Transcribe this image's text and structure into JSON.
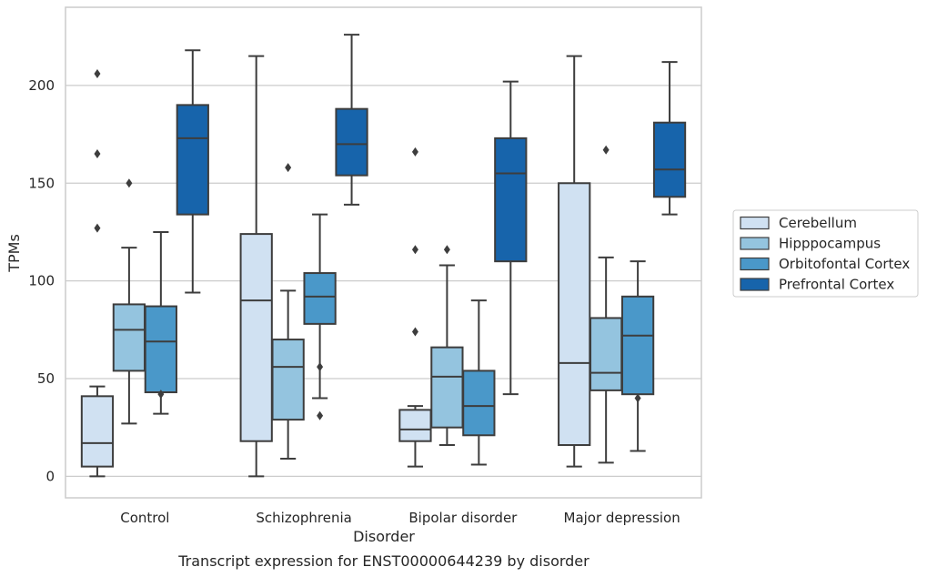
{
  "chart_data": {
    "type": "box",
    "caption": "Transcript expression for ENST00000644239 by disorder",
    "xlabel": "Disorder",
    "ylabel": "TPMs",
    "ylim": [
      -11,
      240
    ],
    "yticks": [
      0,
      50,
      100,
      150,
      200
    ],
    "grid": "horizontal",
    "legend_position": "right",
    "categories": [
      "Control",
      "Schizophrenia",
      "Bipolar disorder",
      "Major depression"
    ],
    "series": [
      {
        "name": "Cerebellum",
        "color": "#d0e1f2",
        "boxes": [
          {
            "whisker_low": 0,
            "q1": 5,
            "median": 17,
            "q3": 41,
            "whisker_high": 46,
            "outliers": [
              206,
              165,
              127
            ]
          },
          {
            "whisker_low": 0,
            "q1": 18,
            "median": 90,
            "q3": 124,
            "whisker_high": 215,
            "outliers": []
          },
          {
            "whisker_low": 5,
            "q1": 18,
            "median": 24,
            "q3": 34,
            "whisker_high": 36,
            "outliers": [
              166,
              116,
              74
            ]
          },
          {
            "whisker_low": 5,
            "q1": 16,
            "median": 58,
            "q3": 150,
            "whisker_high": 215,
            "outliers": []
          }
        ]
      },
      {
        "name": "Hipppocampus",
        "color": "#94c4df",
        "boxes": [
          {
            "whisker_low": 27,
            "q1": 54,
            "median": 75,
            "q3": 88,
            "whisker_high": 117,
            "outliers": [
              150
            ]
          },
          {
            "whisker_low": 9,
            "q1": 29,
            "median": 56,
            "q3": 70,
            "whisker_high": 95,
            "outliers": [
              158
            ]
          },
          {
            "whisker_low": 16,
            "q1": 25,
            "median": 51,
            "q3": 66,
            "whisker_high": 108,
            "outliers": [
              116
            ]
          },
          {
            "whisker_low": 7,
            "q1": 44,
            "median": 53,
            "q3": 81,
            "whisker_high": 112,
            "outliers": [
              167
            ]
          }
        ]
      },
      {
        "name": "Orbitofontal Cortex",
        "color": "#4a98c9",
        "boxes": [
          {
            "whisker_low": 32,
            "q1": 43,
            "median": 69,
            "q3": 87,
            "whisker_high": 125,
            "outliers": [
              42
            ]
          },
          {
            "whisker_low": 40,
            "q1": 78,
            "median": 92,
            "q3": 104,
            "whisker_high": 134,
            "outliers": [
              56,
              31
            ]
          },
          {
            "whisker_low": 6,
            "q1": 21,
            "median": 36,
            "q3": 54,
            "whisker_high": 90,
            "outliers": []
          },
          {
            "whisker_low": 13,
            "q1": 42,
            "median": 72,
            "q3": 92,
            "whisker_high": 110,
            "outliers": [
              40
            ]
          }
        ]
      },
      {
        "name": "Prefrontal Cortex",
        "color": "#1764ab",
        "boxes": [
          {
            "whisker_low": 94,
            "q1": 134,
            "median": 173,
            "q3": 190,
            "whisker_high": 218,
            "outliers": []
          },
          {
            "whisker_low": 139,
            "q1": 154,
            "median": 170,
            "q3": 188,
            "whisker_high": 226,
            "outliers": []
          },
          {
            "whisker_low": 42,
            "q1": 110,
            "median": 155,
            "q3": 173,
            "whisker_high": 202,
            "outliers": []
          },
          {
            "whisker_low": 134,
            "q1": 143,
            "median": 157,
            "q3": 181,
            "whisker_high": 212,
            "outliers": []
          }
        ]
      }
    ]
  }
}
